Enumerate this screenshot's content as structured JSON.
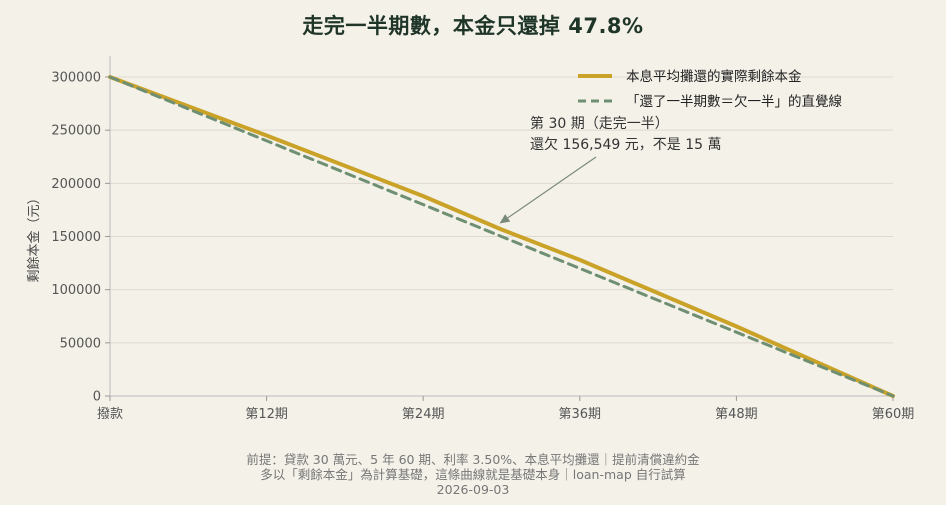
{
  "chart_data": {
    "type": "line",
    "title": "走完一半期數，本金只還掉 47.8%",
    "ylabel": "剩餘本金（元）",
    "xlabel": "",
    "ylim": [
      0,
      300000
    ],
    "xlim": [
      0,
      60
    ],
    "yticks": [
      0,
      50000,
      100000,
      150000,
      200000,
      250000,
      300000
    ],
    "ytick_labels": [
      "0",
      "50000",
      "100000",
      "150000",
      "200000",
      "250000",
      "300000"
    ],
    "xticks": [
      0,
      12,
      24,
      36,
      48,
      60
    ],
    "xtick_labels": [
      "撥款",
      "第12期",
      "第24期",
      "第36期",
      "第48期",
      "第60期"
    ],
    "grid": "horizontal",
    "legend_position": "top-right",
    "series": [
      {
        "name": "本息平均攤還的實際剩餘本金",
        "style": "solid",
        "color": "#c9a227",
        "points": [
          [
            0,
            300000
          ],
          [
            12,
            245000
          ],
          [
            24,
            188000
          ],
          [
            30,
            156549
          ],
          [
            36,
            128000
          ],
          [
            48,
            65500
          ],
          [
            60,
            0
          ]
        ]
      },
      {
        "name": "「還了一半期數＝欠一半」的直覺線",
        "style": "dashed",
        "color": "#6f8f72",
        "points": [
          [
            0,
            300000
          ],
          [
            60,
            0
          ]
        ]
      }
    ],
    "annotation": {
      "line1": "第 30 期（走完一半）",
      "line2": "還欠 156,549 元，不是 15 萬",
      "point": [
        30,
        156549
      ]
    }
  },
  "footer": {
    "line1": "前提：貸款 30 萬元、5 年 60 期、利率 3.50%、本息平均攤還｜提前清償違約金",
    "line2": "多以「剩餘本金」為計算基礎，這條曲線就是基礎本身｜loan-map 自行試算",
    "line3": "2026-09-03"
  }
}
